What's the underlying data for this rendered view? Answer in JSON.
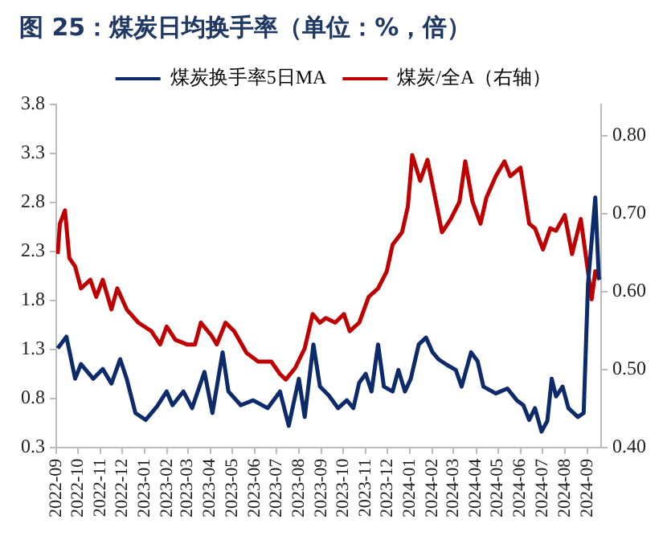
{
  "chart_data": {
    "type": "line",
    "title": "图 25：煤炭日均换手率（单位：%，倍）",
    "series": [
      {
        "name": "煤炭换手率5日MA",
        "color": "#0d2b6b",
        "x": [
          "2022-09-03",
          "2022-09-15",
          "2022-09-27",
          "2022-10-05",
          "2022-10-22",
          "2022-11-04",
          "2022-11-16",
          "2022-11-28",
          "2022-12-07",
          "2022-12-19",
          "2023-01-02",
          "2023-01-18",
          "2023-01-31",
          "2023-02-08",
          "2023-02-23",
          "2023-03-07",
          "2023-03-24",
          "2023-04-04",
          "2023-04-18",
          "2023-04-26",
          "2023-05-13",
          "2023-05-30",
          "2023-06-19",
          "2023-07-06",
          "2023-07-18",
          "2023-08-01",
          "2023-08-09",
          "2023-08-21",
          "2023-08-30",
          "2023-09-11",
          "2023-09-24",
          "2023-10-06",
          "2023-10-15",
          "2023-10-23",
          "2023-11-01",
          "2023-11-09",
          "2023-11-18",
          "2023-11-26",
          "2023-12-08",
          "2023-12-16",
          "2023-12-25",
          "2024-01-02",
          "2024-01-13",
          "2024-01-23",
          "2024-02-01",
          "2024-02-09",
          "2024-02-21",
          "2024-03-04",
          "2024-03-12",
          "2024-03-25",
          "2024-04-03",
          "2024-04-11",
          "2024-04-28",
          "2024-05-14",
          "2024-05-27",
          "2024-06-05",
          "2024-06-13",
          "2024-06-21",
          "2024-06-30",
          "2024-07-08",
          "2024-07-14",
          "2024-07-20",
          "2024-07-29",
          "2024-08-06",
          "2024-08-19",
          "2024-08-27",
          "2024-09-02",
          "2024-09-12",
          "2024-09-17"
        ],
        "values": [
          1.31,
          1.43,
          1.0,
          1.15,
          1.0,
          1.1,
          0.95,
          1.2,
          1.0,
          0.65,
          0.58,
          0.72,
          0.87,
          0.73,
          0.87,
          0.7,
          1.07,
          0.65,
          1.27,
          0.87,
          0.73,
          0.78,
          0.7,
          0.87,
          0.52,
          1.0,
          0.61,
          1.35,
          0.92,
          0.83,
          0.7,
          0.78,
          0.7,
          0.96,
          1.05,
          0.87,
          1.35,
          0.92,
          0.87,
          1.09,
          0.87,
          1.0,
          1.35,
          1.42,
          1.27,
          1.2,
          1.14,
          1.09,
          0.92,
          1.27,
          1.18,
          0.92,
          0.85,
          0.9,
          0.78,
          0.73,
          0.58,
          0.7,
          0.46,
          0.57,
          1.0,
          0.82,
          0.92,
          0.7,
          0.61,
          0.65,
          1.97,
          2.85,
          2.01
        ]
      },
      {
        "name": "煤炭/全A（右轴）",
        "color": "#c00000",
        "axis": "y2",
        "x": [
          "2022-09-03",
          "2022-09-06",
          "2022-09-13",
          "2022-09-19",
          "2022-09-27",
          "2022-10-05",
          "2022-10-18",
          "2022-10-26",
          "2022-11-04",
          "2022-11-16",
          "2022-11-24",
          "2022-12-07",
          "2022-12-23",
          "2023-01-10",
          "2023-01-22",
          "2023-01-31",
          "2023-02-12",
          "2023-02-28",
          "2023-03-11",
          "2023-03-19",
          "2023-04-03",
          "2023-04-10",
          "2023-04-22",
          "2023-05-04",
          "2023-05-21",
          "2023-06-06",
          "2023-06-24",
          "2023-07-06",
          "2023-07-14",
          "2023-07-27",
          "2023-08-09",
          "2023-08-20",
          "2023-08-30",
          "2023-09-07",
          "2023-09-20",
          "2023-10-02",
          "2023-10-10",
          "2023-10-23",
          "2023-11-05",
          "2023-11-18",
          "2023-11-30",
          "2023-12-08",
          "2023-12-21",
          "2023-12-29",
          "2024-01-04",
          "2024-01-15",
          "2024-01-25",
          "2024-02-01",
          "2024-02-14",
          "2024-02-26",
          "2024-03-09",
          "2024-03-17",
          "2024-03-27",
          "2024-04-07",
          "2024-04-15",
          "2024-04-28",
          "2024-05-10",
          "2024-05-18",
          "2024-06-01",
          "2024-06-13",
          "2024-06-21",
          "2024-07-02",
          "2024-07-12",
          "2024-07-20",
          "2024-08-01",
          "2024-08-11",
          "2024-08-23",
          "2024-09-01",
          "2024-09-07",
          "2024-09-12",
          "2024-09-18"
        ],
        "values": [
          0.648,
          0.687,
          0.704,
          0.643,
          0.632,
          0.604,
          0.615,
          0.593,
          0.615,
          0.577,
          0.604,
          0.577,
          0.56,
          0.549,
          0.532,
          0.555,
          0.538,
          0.532,
          0.532,
          0.56,
          0.543,
          0.532,
          0.56,
          0.549,
          0.521,
          0.51,
          0.51,
          0.494,
          0.487,
          0.502,
          0.527,
          0.571,
          0.56,
          0.566,
          0.56,
          0.571,
          0.549,
          0.56,
          0.593,
          0.604,
          0.626,
          0.66,
          0.676,
          0.709,
          0.775,
          0.742,
          0.769,
          0.737,
          0.676,
          0.693,
          0.715,
          0.767,
          0.715,
          0.687,
          0.72,
          0.748,
          0.767,
          0.748,
          0.759,
          0.687,
          0.681,
          0.654,
          0.681,
          0.678,
          0.698,
          0.648,
          0.693,
          0.632,
          0.59,
          0.626,
          0.615
        ]
      }
    ],
    "xlim": [
      "2022-09",
      "2024-09-20"
    ],
    "xticks": [
      {
        "value": "2022-09",
        "label": "2022-09"
      },
      {
        "value": "2022-10",
        "label": "2022-10"
      },
      {
        "value": "2022-11",
        "label": "2022-11"
      },
      {
        "value": "2022-12",
        "label": "2022-12"
      },
      {
        "value": "2023-01",
        "label": "2023-01"
      },
      {
        "value": "2023-02",
        "label": "2023-02"
      },
      {
        "value": "2023-03",
        "label": "2023-03"
      },
      {
        "value": "2023-04",
        "label": "2023-04"
      },
      {
        "value": "2023-05",
        "label": "2023-05"
      },
      {
        "value": "2023-06",
        "label": "2023-06"
      },
      {
        "value": "2023-07",
        "label": "2023-07"
      },
      {
        "value": "2023-08",
        "label": "2023-08"
      },
      {
        "value": "2023-09",
        "label": "2023-09"
      },
      {
        "value": "2023-10",
        "label": "2023-10"
      },
      {
        "value": "2023-11",
        "label": "2023-11"
      },
      {
        "value": "2023-12",
        "label": "2023-12"
      },
      {
        "value": "2024-01",
        "label": "2024-01"
      },
      {
        "value": "2024-02",
        "label": "2024-02"
      },
      {
        "value": "2024-03",
        "label": "2024-03"
      },
      {
        "value": "2024-04",
        "label": "2024-04"
      },
      {
        "value": "2024-05",
        "label": "2024-05"
      },
      {
        "value": "2024-06",
        "label": "2024-06"
      },
      {
        "value": "2024-07",
        "label": "2024-07"
      },
      {
        "value": "2024-08",
        "label": "2024-08"
      },
      {
        "value": "2024-09",
        "label": "2024-09"
      }
    ],
    "ylim": [
      0.3,
      3.8
    ],
    "yticks": [
      0.3,
      0.8,
      1.3,
      1.8,
      2.3,
      2.8,
      3.3,
      3.8
    ],
    "y2lim": [
      0.4,
      0.84
    ],
    "y2ticks": [
      {
        "value": 0.4,
        "label": "0.40"
      },
      {
        "value": 0.5,
        "label": "0.50"
      },
      {
        "value": 0.6,
        "label": "0.60"
      },
      {
        "value": 0.7,
        "label": "0.70"
      },
      {
        "value": 0.8,
        "label": "0.80"
      }
    ],
    "grid": false,
    "legend": "top",
    "marker": "none",
    "line_style": "solid"
  }
}
